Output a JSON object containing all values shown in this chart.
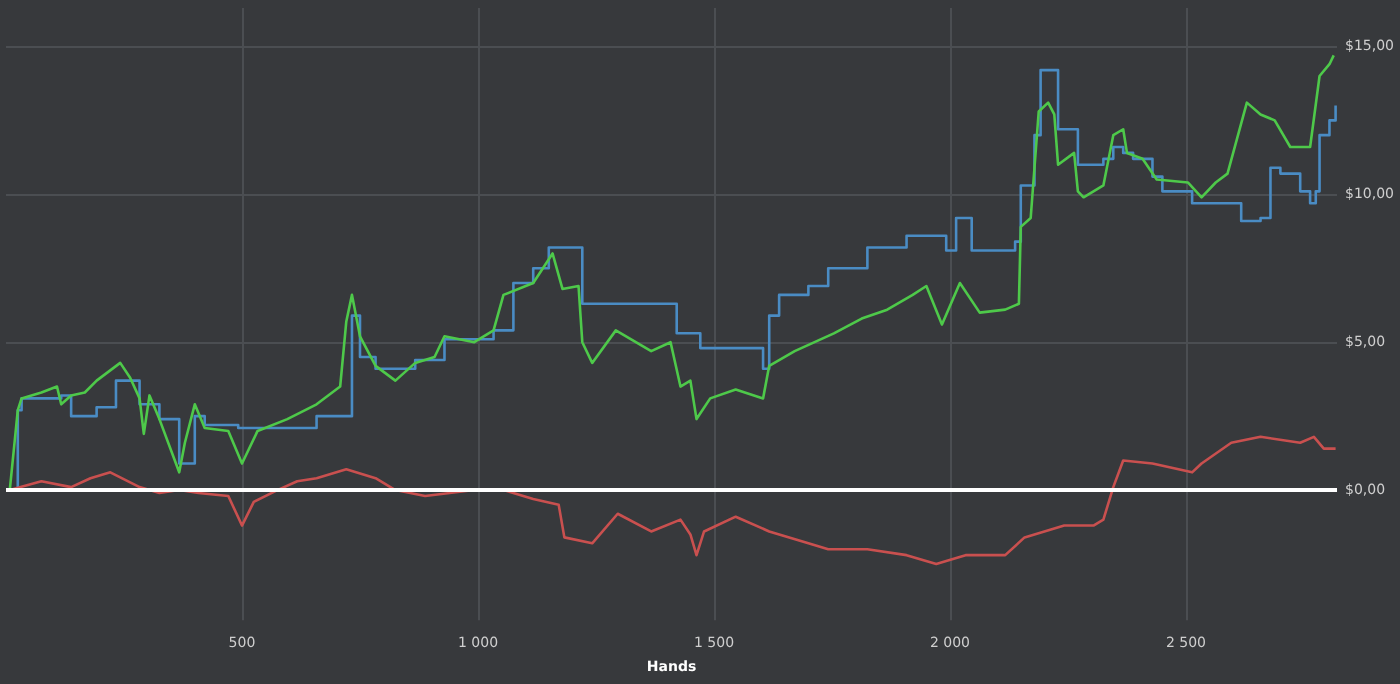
{
  "chart_data": {
    "type": "line",
    "xlabel": "Hands",
    "xlim": [
      0,
      2820
    ],
    "ylim": [
      -4.4,
      16.3
    ],
    "xticks": [
      500,
      {
        "value": 1000,
        "label": "1 000"
      },
      {
        "value": 1500,
        "label": "1 500"
      },
      {
        "value": 2000,
        "label": "2 000"
      },
      {
        "value": 2500,
        "label": "2 500"
      }
    ],
    "yticks": [
      {
        "value": 0,
        "label": "$0,00"
      },
      {
        "value": 5,
        "label": "$5,00"
      },
      {
        "value": 10,
        "label": "$10,00"
      },
      {
        "value": 15,
        "label": "$15,00"
      }
    ],
    "grid": true,
    "ref_lines": [
      {
        "axis": "y",
        "value": 0,
        "color": "#ffffff"
      }
    ],
    "series": [
      {
        "type": "step",
        "color": "#4a8cc4",
        "x": [
          8,
          25,
          33,
          117,
          138,
          192,
          233,
          263,
          283,
          325,
          367,
          400,
          421,
          492,
          533,
          658,
          721,
          733,
          750,
          783,
          867,
          929,
          1033,
          1075,
          1117,
          1150,
          1221,
          1221,
          1417,
          1421,
          1450,
          1471,
          1604,
          1617,
          1638,
          1700,
          1742,
          1825,
          1908,
          1992,
          2013,
          2033,
          2046,
          2138,
          2150,
          2179,
          2192,
          2221,
          2229,
          2263,
          2271,
          2325,
          2346,
          2367,
          2388,
          2429,
          2450,
          2513,
          2575,
          2617,
          2658,
          2679,
          2700,
          2742,
          2763,
          2775,
          2783,
          2804,
          2817
        ],
        "values": [
          0,
          2.7,
          3.1,
          3.2,
          2.5,
          2.8,
          3.7,
          3.7,
          2.9,
          2.4,
          0.9,
          2.5,
          2.2,
          2.1,
          2.1,
          2.5,
          2.5,
          5.9,
          4.5,
          4.1,
          4.4,
          5.1,
          5.4,
          7.0,
          7.5,
          8.2,
          8.2,
          6.3,
          6.3,
          5.3,
          5.3,
          4.8,
          4.1,
          5.9,
          6.6,
          6.9,
          7.5,
          8.2,
          8.6,
          8.1,
          9.2,
          9.2,
          8.1,
          8.4,
          10.3,
          12.0,
          14.2,
          14.2,
          12.2,
          12.2,
          11.0,
          11.2,
          11.6,
          11.4,
          11.2,
          10.6,
          10.1,
          9.7,
          9.7,
          9.1,
          9.2,
          10.9,
          10.7,
          10.1,
          9.7,
          10.1,
          12.0,
          12.5,
          13.0
        ]
      },
      {
        "color": "#4ec94a",
        "x": [
          8,
          25,
          33,
          75,
          108,
          117,
          138,
          167,
          192,
          242,
          263,
          283,
          292,
          304,
          325,
          367,
          379,
          400,
          421,
          471,
          500,
          533,
          596,
          658,
          708,
          721,
          733,
          750,
          783,
          825,
          867,
          908,
          929,
          992,
          1033,
          1054,
          1117,
          1158,
          1179,
          1213,
          1221,
          1242,
          1292,
          1367,
          1408,
          1429,
          1450,
          1463,
          1492,
          1546,
          1604,
          1617,
          1671,
          1754,
          1813,
          1867,
          1921,
          1950,
          1983,
          2021,
          2063,
          2117,
          2146,
          2150,
          2171,
          2188,
          2208,
          2221,
          2229,
          2263,
          2271,
          2283,
          2325,
          2346,
          2367,
          2375,
          2408,
          2438,
          2504,
          2533,
          2563,
          2588,
          2629,
          2658,
          2688,
          2721,
          2763,
          2783,
          2804,
          2813
        ],
        "values": [
          0,
          2.7,
          3.1,
          3.3,
          3.5,
          2.9,
          3.2,
          3.3,
          3.7,
          4.3,
          3.8,
          3.1,
          1.9,
          3.2,
          2.4,
          0.6,
          1.6,
          2.9,
          2.1,
          2.0,
          0.9,
          2.0,
          2.4,
          2.9,
          3.5,
          5.7,
          6.6,
          5.2,
          4.2,
          3.7,
          4.3,
          4.5,
          5.2,
          5.0,
          5.4,
          6.6,
          7.0,
          8.0,
          6.8,
          6.9,
          5.0,
          4.3,
          5.4,
          4.7,
          5.0,
          3.5,
          3.7,
          2.4,
          3.1,
          3.4,
          3.1,
          4.2,
          4.7,
          5.3,
          5.8,
          6.1,
          6.6,
          6.9,
          5.6,
          7.0,
          6.0,
          6.1,
          6.3,
          8.9,
          9.2,
          12.8,
          13.1,
          12.7,
          11.0,
          11.4,
          10.1,
          9.9,
          10.3,
          12.0,
          12.2,
          11.4,
          11.2,
          10.5,
          10.4,
          9.9,
          10.4,
          10.7,
          13.1,
          12.7,
          12.5,
          11.6,
          11.6,
          14.0,
          14.4,
          14.7
        ]
      },
      {
        "color": "#c9504f",
        "x": [
          8,
          75,
          138,
          179,
          221,
          283,
          325,
          367,
          408,
          471,
          500,
          525,
          575,
          617,
          658,
          721,
          783,
          825,
          888,
          992,
          1054,
          1117,
          1171,
          1183,
          1242,
          1296,
          1367,
          1429,
          1450,
          1463,
          1479,
          1546,
          1617,
          1700,
          1742,
          1825,
          1908,
          1971,
          1992,
          2033,
          2117,
          2158,
          2242,
          2304,
          2325,
          2346,
          2367,
          2429,
          2513,
          2533,
          2596,
          2658,
          2742,
          2771,
          2792,
          2817
        ],
        "values": [
          0,
          0.3,
          0.1,
          0.4,
          0.6,
          0.1,
          -0.1,
          0.0,
          -0.1,
          -0.2,
          -1.2,
          -0.4,
          0.0,
          0.3,
          0.4,
          0.7,
          0.4,
          0.0,
          -0.2,
          0.0,
          0.0,
          -0.3,
          -0.5,
          -1.6,
          -1.8,
          -0.8,
          -1.4,
          -1.0,
          -1.5,
          -2.2,
          -1.4,
          -0.9,
          -1.4,
          -1.8,
          -2.0,
          -2.0,
          -2.2,
          -2.5,
          -2.4,
          -2.2,
          -2.2,
          -1.6,
          -1.2,
          -1.2,
          -1.0,
          0.1,
          1.0,
          0.9,
          0.6,
          0.9,
          1.6,
          1.8,
          1.6,
          1.8,
          1.4,
          1.4
        ]
      }
    ]
  }
}
